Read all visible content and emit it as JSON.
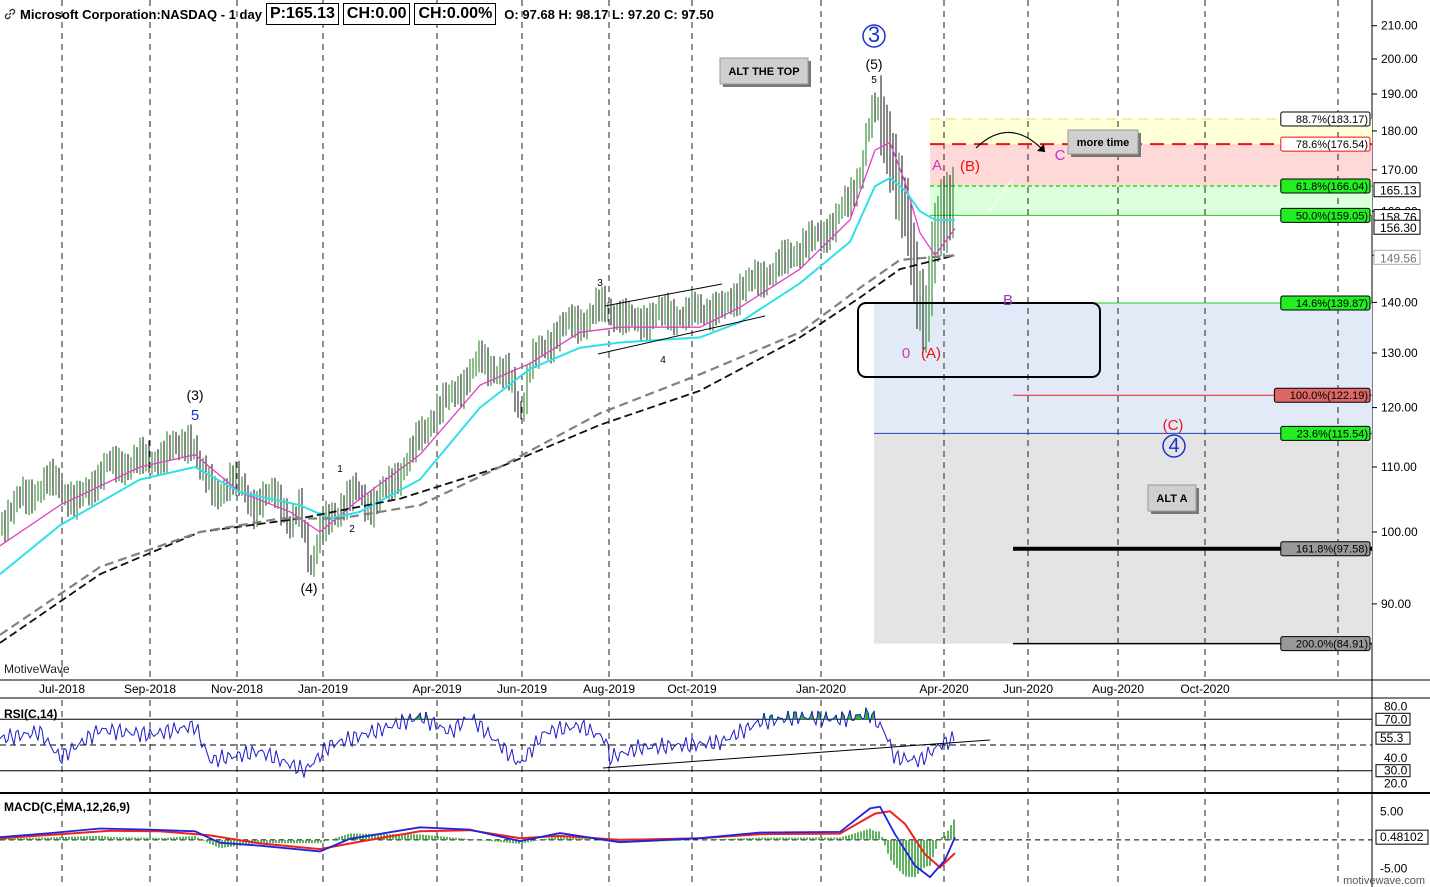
{
  "header": {
    "title": "Microsoft Corporation:NASDAQ - 1 day",
    "price": "P:165.13",
    "change": "CH:0.00",
    "change_pct": "CH:0.00%",
    "ohlc": "O: 97.68  H: 98.17  L: 97.20  C: 97.50"
  },
  "watermark": "MotiveWave",
  "footer": "motivewave.com",
  "colors": {
    "up_bar": "#1a7a1a",
    "down_bar": "#111111",
    "ema_fast": "#e040c8",
    "ema_mid": "#30e0e8",
    "ma_long": "#111111",
    "ma_long2": "#808080",
    "rsi": "#1a1acc",
    "rsi_fill": "#2bb52b",
    "macd": "#2222dd",
    "signal": "#ee2222",
    "hist": "#2a9a2a",
    "fib_yellow": "#ffffd8",
    "fib_red": "#ffd8d8",
    "fib_green": "#dcffdc",
    "fib_blue": "#e2eaf8",
    "fib_gray": "#e4e4e4"
  },
  "chart_data": [
    {
      "type": "line",
      "title": "Microsoft Corporation:NASDAQ - 1 day",
      "x_ticks": [
        "Jul-2018",
        "Sep-2018",
        "Nov-2018",
        "Jan-2019",
        "Apr-2019",
        "Jun-2019",
        "Aug-2019",
        "Oct-2019",
        "Jan-2020",
        "Apr-2020",
        "Jun-2020",
        "Aug-2020",
        "Oct-2020"
      ],
      "y_ticks": [
        90,
        100,
        110,
        120,
        130,
        140,
        150,
        160,
        170,
        180,
        190,
        200,
        210
      ],
      "ylim": [
        83,
        213
      ],
      "scale": "log",
      "series": [
        {
          "values": [
            [
              0,
              101
            ],
            [
              20,
              105
            ],
            [
              55,
              108
            ],
            [
              75,
              104
            ],
            [
              105,
              110
            ],
            [
              140,
              111
            ],
            [
              165,
              112
            ],
            [
              190,
              115
            ],
            [
              200,
              109
            ],
            [
              220,
              106
            ],
            [
              240,
              108
            ],
            [
              255,
              103
            ],
            [
              275,
              107
            ],
            [
              290,
              100
            ],
            [
              300,
              104
            ],
            [
              310,
              95
            ],
            [
              320,
              100
            ],
            [
              340,
              104
            ],
            [
              355,
              106
            ],
            [
              370,
              104
            ],
            [
              390,
              107
            ],
            [
              410,
              112
            ],
            [
              430,
              118
            ],
            [
              450,
              122
            ],
            [
              470,
              126
            ],
            [
              480,
              129
            ],
            [
              495,
              127
            ],
            [
              510,
              125
            ],
            [
              520,
              119
            ],
            [
              530,
              128
            ],
            [
              545,
              131
            ],
            [
              560,
              135
            ],
            [
              580,
              136
            ],
            [
              600,
              139
            ],
            [
              615,
              138
            ],
            [
              630,
              136
            ],
            [
              650,
              137
            ],
            [
              670,
              138
            ],
            [
              685,
              137
            ],
            [
              700,
              139
            ],
            [
              720,
              138
            ],
            [
              740,
              143
            ],
            [
              760,
              145
            ],
            [
              780,
              148
            ],
            [
              800,
              152
            ],
            [
              820,
              154
            ],
            [
              835,
              158
            ],
            [
              850,
              163
            ],
            [
              860,
              170
            ],
            [
              868,
              181
            ],
            [
              875,
              186
            ],
            [
              880,
              183
            ],
            [
              887,
              178
            ],
            [
              893,
              171
            ],
            [
              900,
              163
            ],
            [
              908,
              156
            ],
            [
              914,
              146
            ],
            [
              920,
              140
            ],
            [
              926,
              137
            ],
            [
              932,
              150
            ],
            [
              938,
              157
            ],
            [
              944,
              160
            ],
            [
              950,
              163
            ],
            [
              955,
              165
            ]
          ]
        },
        {
          "values": [
            [
              0,
              98
            ],
            [
              60,
              104
            ],
            [
              140,
              110
            ],
            [
              195,
              112
            ],
            [
              240,
              106
            ],
            [
              290,
              103
            ],
            [
              320,
              100
            ],
            [
              360,
              105
            ],
            [
              420,
              112
            ],
            [
              480,
              124
            ],
            [
              530,
              128
            ],
            [
              580,
              134
            ],
            [
              620,
              135
            ],
            [
              700,
              135
            ],
            [
              740,
              139
            ],
            [
              800,
              147
            ],
            [
              850,
              158
            ],
            [
              875,
              175
            ],
            [
              890,
              177
            ],
            [
              905,
              167
            ],
            [
              920,
              155
            ],
            [
              935,
              150
            ],
            [
              955,
              156
            ]
          ]
        },
        {
          "values": [
            [
              0,
              94
            ],
            [
              60,
              101
            ],
            [
              140,
              108
            ],
            [
              195,
              110
            ],
            [
              240,
              106
            ],
            [
              300,
              104
            ],
            [
              330,
              102
            ],
            [
              360,
              103
            ],
            [
              420,
              108
            ],
            [
              480,
              120
            ],
            [
              530,
              127
            ],
            [
              580,
              131
            ],
            [
              620,
              132
            ],
            [
              700,
              133
            ],
            [
              740,
              136
            ],
            [
              800,
              144
            ],
            [
              850,
              153
            ],
            [
              875,
              166
            ],
            [
              890,
              168
            ],
            [
              905,
              165
            ],
            [
              920,
              160
            ],
            [
              935,
              158
            ],
            [
              955,
              158
            ]
          ]
        },
        {
          "values": [
            [
              0,
              85
            ],
            [
              100,
              94
            ],
            [
              200,
              100
            ],
            [
              300,
              102
            ],
            [
              400,
              105
            ],
            [
              500,
              110
            ],
            [
              600,
              117
            ],
            [
              700,
              123
            ],
            [
              800,
              133
            ],
            [
              860,
              141
            ],
            [
              900,
              147
            ],
            [
              955,
              150
            ]
          ]
        },
        {
          "values": [
            [
              0,
              86
            ],
            [
              100,
              95
            ],
            [
              200,
              100
            ],
            [
              280,
              102
            ],
            [
              340,
              102
            ],
            [
              420,
              104
            ],
            [
              500,
              110
            ],
            [
              600,
              119
            ],
            [
              700,
              126
            ],
            [
              800,
              134
            ],
            [
              860,
              143
            ],
            [
              900,
              149
            ],
            [
              955,
              150
            ]
          ]
        }
      ],
      "price_labels": [
        "165.13",
        "158.76",
        "156.30",
        "149.56"
      ],
      "fib_levels": [
        {
          "label": "88.7%(183.17)",
          "value": 183.17
        },
        {
          "label": "78.6%(176.54)",
          "value": 176.54
        },
        {
          "label": "61.8%(166.04)",
          "value": 166.04
        },
        {
          "label": "50.0%(159.05)",
          "value": 159.05
        },
        {
          "label": "14.6%(139.87)",
          "value": 139.87
        },
        {
          "label": "100.0%(122.19)",
          "value": 122.19
        },
        {
          "label": "23.6%(115.54)",
          "value": 115.54
        },
        {
          "label": "161.8%(97.58)",
          "value": 97.58
        },
        {
          "label": "200.0%(84.91)",
          "value": 84.91
        }
      ],
      "wave_labels": [
        "(3)",
        "5",
        "(4)",
        "1",
        "2",
        "3",
        "4",
        "3",
        "(5)",
        "5",
        "A",
        "(B)",
        "0",
        "(A)",
        "B",
        "C",
        "(C)",
        "4"
      ],
      "annotations": [
        "ALT THE TOP",
        "more time",
        "ALT A"
      ]
    },
    {
      "type": "line",
      "title": "RSI(C,14)",
      "y_ticks": [
        20,
        30,
        40,
        55.3,
        70,
        80
      ],
      "levels": [
        30,
        50,
        70
      ],
      "ylim": [
        15,
        85
      ],
      "series": [
        {
          "values": [
            [
              0,
              55
            ],
            [
              40,
              60
            ],
            [
              60,
              40
            ],
            [
              100,
              62
            ],
            [
              150,
              58
            ],
            [
              195,
              65
            ],
            [
              210,
              38
            ],
            [
              260,
              45
            ],
            [
              305,
              30
            ],
            [
              330,
              50
            ],
            [
              380,
              62
            ],
            [
              420,
              72
            ],
            [
              450,
              60
            ],
            [
              470,
              72
            ],
            [
              500,
              50
            ],
            [
              520,
              35
            ],
            [
              545,
              60
            ],
            [
              580,
              65
            ],
            [
              605,
              55
            ],
            [
              610,
              40
            ],
            [
              640,
              48
            ],
            [
              690,
              50
            ],
            [
              720,
              52
            ],
            [
              760,
              68
            ],
            [
              800,
              72
            ],
            [
              840,
              70
            ],
            [
              870,
              74
            ],
            [
              885,
              60
            ],
            [
              895,
              40
            ],
            [
              920,
              38
            ],
            [
              940,
              50
            ],
            [
              955,
              55
            ]
          ]
        }
      ],
      "current": "55.3"
    },
    {
      "type": "line",
      "title": "MACD(C,EMA,12,26,9)",
      "y_ticks": [
        5.0,
        0.48102,
        -5.0
      ],
      "ylim": [
        -7,
        7.5
      ],
      "series": [
        {
          "values": [
            [
              0,
              0.5
            ],
            [
              50,
              1.2
            ],
            [
              100,
              2.0
            ],
            [
              150,
              1.8
            ],
            [
              195,
              1.5
            ],
            [
              220,
              -0.5
            ],
            [
              260,
              -1.0
            ],
            [
              320,
              -2.0
            ],
            [
              350,
              0.2
            ],
            [
              420,
              2.2
            ],
            [
              470,
              1.8
            ],
            [
              520,
              -0.2
            ],
            [
              560,
              1.2
            ],
            [
              620,
              -0.4
            ],
            [
              700,
              0.3
            ],
            [
              760,
              1.3
            ],
            [
              840,
              1.4
            ],
            [
              870,
              5.5
            ],
            [
              880,
              5.8
            ],
            [
              895,
              1.0
            ],
            [
              915,
              -4.5
            ],
            [
              930,
              -6.5
            ],
            [
              945,
              -3.5
            ],
            [
              955,
              0.48
            ]
          ]
        },
        {
          "values": [
            [
              0,
              0.3
            ],
            [
              60,
              1.0
            ],
            [
              110,
              1.6
            ],
            [
              160,
              1.5
            ],
            [
              210,
              0.8
            ],
            [
              260,
              -0.6
            ],
            [
              320,
              -1.6
            ],
            [
              360,
              -0.3
            ],
            [
              420,
              1.5
            ],
            [
              470,
              1.7
            ],
            [
              520,
              0.3
            ],
            [
              560,
              0.7
            ],
            [
              620,
              0.0
            ],
            [
              700,
              0.3
            ],
            [
              760,
              1.0
            ],
            [
              840,
              1.1
            ],
            [
              875,
              4.6
            ],
            [
              890,
              5.0
            ],
            [
              905,
              2.8
            ],
            [
              925,
              -2.5
            ],
            [
              940,
              -4.8
            ],
            [
              955,
              -2.3
            ]
          ]
        }
      ],
      "current": "0.48102"
    }
  ]
}
